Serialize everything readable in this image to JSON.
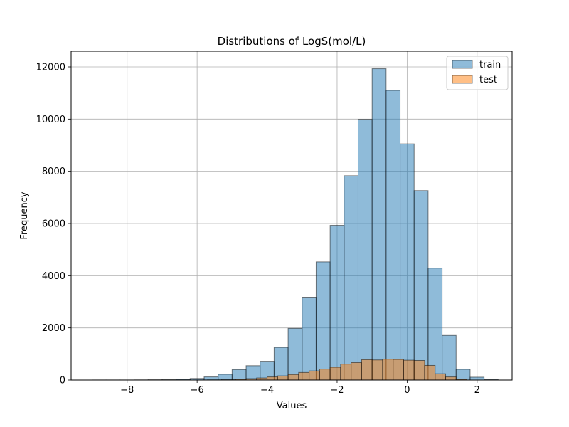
{
  "chart_data": {
    "type": "bar",
    "title": "Distributions of LogS(mol/L)",
    "xlabel": "Values",
    "ylabel": "Frequency",
    "xlim": [
      -9.6,
      3.0
    ],
    "ylim": [
      0,
      12600
    ],
    "xticks": [
      {
        "value": -8,
        "label": "−8"
      },
      {
        "value": -6,
        "label": "−6"
      },
      {
        "value": -4,
        "label": "−4"
      },
      {
        "value": -2,
        "label": "−2"
      },
      {
        "value": 0,
        "label": "0"
      },
      {
        "value": 2,
        "label": "2"
      }
    ],
    "yticks": [
      {
        "value": 0,
        "label": "0"
      },
      {
        "value": 2000,
        "label": "2000"
      },
      {
        "value": 4000,
        "label": "4000"
      },
      {
        "value": 6000,
        "label": "6000"
      },
      {
        "value": 8000,
        "label": "8000"
      },
      {
        "value": 10000,
        "label": "10000"
      },
      {
        "value": 12000,
        "label": "12000"
      }
    ],
    "grid": true,
    "legend_position": "top-right",
    "series": [
      {
        "name": "train",
        "color": "#1f77b4",
        "fill_opacity": 0.5,
        "bins": [
          {
            "x0": -9.0,
            "x1": -8.6,
            "y": 2
          },
          {
            "x0": -8.6,
            "x1": -8.2,
            "y": 2
          },
          {
            "x0": -8.2,
            "x1": -7.8,
            "y": 2
          },
          {
            "x0": -7.8,
            "x1": -7.4,
            "y": 5
          },
          {
            "x0": -7.4,
            "x1": -7.0,
            "y": 10
          },
          {
            "x0": -7.0,
            "x1": -6.6,
            "y": 15
          },
          {
            "x0": -6.6,
            "x1": -6.2,
            "y": 25
          },
          {
            "x0": -6.2,
            "x1": -5.8,
            "y": 60
          },
          {
            "x0": -5.8,
            "x1": -5.4,
            "y": 120
          },
          {
            "x0": -5.4,
            "x1": -5.0,
            "y": 220
          },
          {
            "x0": -5.0,
            "x1": -4.6,
            "y": 400
          },
          {
            "x0": -4.6,
            "x1": -4.2,
            "y": 550
          },
          {
            "x0": -4.2,
            "x1": -3.8,
            "y": 720
          },
          {
            "x0": -3.8,
            "x1": -3.4,
            "y": 1250
          },
          {
            "x0": -3.4,
            "x1": -3.0,
            "y": 1980
          },
          {
            "x0": -3.0,
            "x1": -2.6,
            "y": 3150
          },
          {
            "x0": -2.6,
            "x1": -2.2,
            "y": 4530
          },
          {
            "x0": -2.2,
            "x1": -1.8,
            "y": 5930
          },
          {
            "x0": -1.8,
            "x1": -1.4,
            "y": 7830
          },
          {
            "x0": -1.4,
            "x1": -1.0,
            "y": 9990
          },
          {
            "x0": -1.0,
            "x1": -0.6,
            "y": 11930
          },
          {
            "x0": -0.6,
            "x1": -0.2,
            "y": 11100
          },
          {
            "x0": -0.2,
            "x1": 0.2,
            "y": 9050
          },
          {
            "x0": 0.2,
            "x1": 0.6,
            "y": 7260
          },
          {
            "x0": 0.6,
            "x1": 1.0,
            "y": 4290
          },
          {
            "x0": 1.0,
            "x1": 1.4,
            "y": 1710
          },
          {
            "x0": 1.4,
            "x1": 1.8,
            "y": 410
          },
          {
            "x0": 1.8,
            "x1": 2.2,
            "y": 110
          },
          {
            "x0": 2.2,
            "x1": 2.6,
            "y": 20
          }
        ]
      },
      {
        "name": "test",
        "color": "#ff7f0e",
        "fill_opacity": 0.5,
        "bins": [
          {
            "x0": -6.1,
            "x1": -5.7,
            "y": 3
          },
          {
            "x0": -5.7,
            "x1": -5.3,
            "y": 8
          },
          {
            "x0": -5.3,
            "x1": -4.9,
            "y": 15
          },
          {
            "x0": -4.9,
            "x1": -4.6,
            "y": 30
          },
          {
            "x0": -4.6,
            "x1": -4.3,
            "y": 55
          },
          {
            "x0": -4.3,
            "x1": -4.0,
            "y": 80
          },
          {
            "x0": -4.0,
            "x1": -3.7,
            "y": 120
          },
          {
            "x0": -3.7,
            "x1": -3.4,
            "y": 160
          },
          {
            "x0": -3.4,
            "x1": -3.1,
            "y": 210
          },
          {
            "x0": -3.1,
            "x1": -2.8,
            "y": 290
          },
          {
            "x0": -2.8,
            "x1": -2.5,
            "y": 350
          },
          {
            "x0": -2.5,
            "x1": -2.2,
            "y": 420
          },
          {
            "x0": -2.2,
            "x1": -1.9,
            "y": 490
          },
          {
            "x0": -1.9,
            "x1": -1.6,
            "y": 610
          },
          {
            "x0": -1.6,
            "x1": -1.3,
            "y": 670
          },
          {
            "x0": -1.3,
            "x1": -1.0,
            "y": 780
          },
          {
            "x0": -1.0,
            "x1": -0.7,
            "y": 770
          },
          {
            "x0": -0.7,
            "x1": -0.4,
            "y": 800
          },
          {
            "x0": -0.4,
            "x1": -0.1,
            "y": 790
          },
          {
            "x0": -0.1,
            "x1": 0.2,
            "y": 760
          },
          {
            "x0": 0.2,
            "x1": 0.5,
            "y": 750
          },
          {
            "x0": 0.5,
            "x1": 0.8,
            "y": 560
          },
          {
            "x0": 0.8,
            "x1": 1.1,
            "y": 240
          },
          {
            "x0": 1.1,
            "x1": 1.4,
            "y": 120
          },
          {
            "x0": 1.4,
            "x1": 1.7,
            "y": 30
          }
        ]
      }
    ]
  }
}
